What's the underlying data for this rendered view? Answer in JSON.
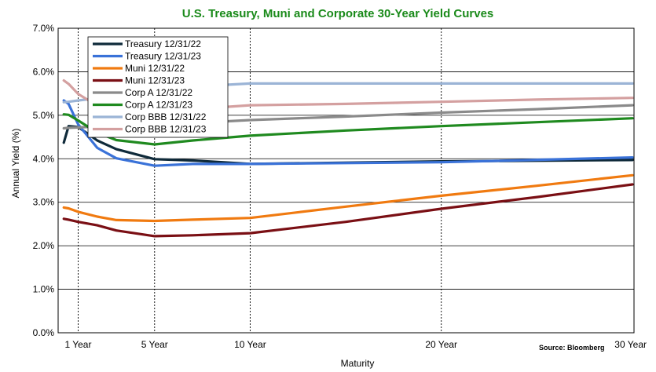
{
  "chart_data": {
    "type": "line",
    "title": "U.S. Treasury, Muni and Corporate 30-Year Yield Curves",
    "xlabel": "Maturity",
    "ylabel": "Annual Yield (%)",
    "source": "Source: Bloomberg",
    "xlim": [
      0,
      30
    ],
    "ylim": [
      0,
      7
    ],
    "y_ticks": [
      0,
      1,
      2,
      3,
      4,
      5,
      6,
      7
    ],
    "y_tick_labels": [
      "0.0%",
      "1.0%",
      "2.0%",
      "3.0%",
      "4.0%",
      "5.0%",
      "6.0%",
      "7.0%"
    ],
    "x_ticks": [
      1,
      5,
      10,
      20,
      30
    ],
    "x_tick_labels": [
      "1 Year",
      "5 Year",
      "10 Year",
      "20 Year",
      "30 Year"
    ],
    "grid": "y-solid, x-dashed at 1, 5, 10, 20 year",
    "legend_position": "top-left",
    "series": [
      {
        "name": "Treasury 12/31/22",
        "color": "#0f2a3a",
        "x": [
          0.25,
          0.5,
          1,
          2,
          3,
          5,
          7,
          10,
          20,
          30
        ],
        "y": [
          4.37,
          4.75,
          4.73,
          4.42,
          4.22,
          3.99,
          3.96,
          3.88,
          3.94,
          3.97
        ]
      },
      {
        "name": "Treasury 12/31/23",
        "color": "#3a72d8",
        "x": [
          0.25,
          0.5,
          1,
          2,
          3,
          5,
          7,
          10,
          20,
          30
        ],
        "y": [
          5.34,
          5.26,
          4.79,
          4.25,
          4.01,
          3.84,
          3.88,
          3.88,
          3.92,
          4.03
        ]
      },
      {
        "name": "Muni 12/31/22",
        "color": "#f07a10",
        "x": [
          0.25,
          0.5,
          1,
          2,
          3,
          5,
          7,
          10,
          15,
          20,
          25,
          30
        ],
        "y": [
          2.88,
          2.86,
          2.78,
          2.67,
          2.59,
          2.57,
          2.6,
          2.64,
          2.9,
          3.15,
          3.38,
          3.62
        ]
      },
      {
        "name": "Muni 12/31/23",
        "color": "#7a0f14",
        "x": [
          0.25,
          0.5,
          1,
          2,
          3,
          5,
          7,
          10,
          15,
          20,
          25,
          30
        ],
        "y": [
          2.62,
          2.6,
          2.55,
          2.47,
          2.35,
          2.22,
          2.24,
          2.29,
          2.55,
          2.85,
          3.12,
          3.41
        ]
      },
      {
        "name": "Corp A 12/31/22",
        "color": "#8a8a8a",
        "x": [
          0.25,
          0.5,
          1,
          2,
          3,
          5,
          7,
          10,
          15,
          20,
          25,
          30
        ],
        "y": [
          4.7,
          4.71,
          4.72,
          4.74,
          4.75,
          4.77,
          4.82,
          4.89,
          4.97,
          5.06,
          5.14,
          5.23
        ]
      },
      {
        "name": "Corp A 12/31/23",
        "color": "#1f8a1f",
        "x": [
          0.25,
          0.5,
          1,
          2,
          3,
          5,
          7,
          10,
          15,
          20,
          25,
          30
        ],
        "y": [
          5.02,
          5.01,
          4.88,
          4.6,
          4.43,
          4.33,
          4.42,
          4.53,
          4.65,
          4.75,
          4.84,
          4.93
        ]
      },
      {
        "name": "Corp BBB 12/31/22",
        "color": "#9bb4d6",
        "x": [
          0.25,
          0.5,
          1,
          2,
          3,
          5,
          7,
          10,
          15,
          20,
          25,
          30
        ],
        "y": [
          5.3,
          5.31,
          5.34,
          5.39,
          5.45,
          5.57,
          5.66,
          5.73,
          5.73,
          5.73,
          5.73,
          5.73
        ]
      },
      {
        "name": "Corp BBB 12/31/23",
        "color": "#d4a0a0",
        "x": [
          0.25,
          0.5,
          1,
          2,
          3,
          5,
          7,
          10,
          15,
          20,
          25,
          30
        ],
        "y": [
          5.8,
          5.72,
          5.49,
          5.22,
          5.04,
          5.05,
          5.14,
          5.23,
          5.26,
          5.31,
          5.36,
          5.4
        ]
      }
    ]
  }
}
